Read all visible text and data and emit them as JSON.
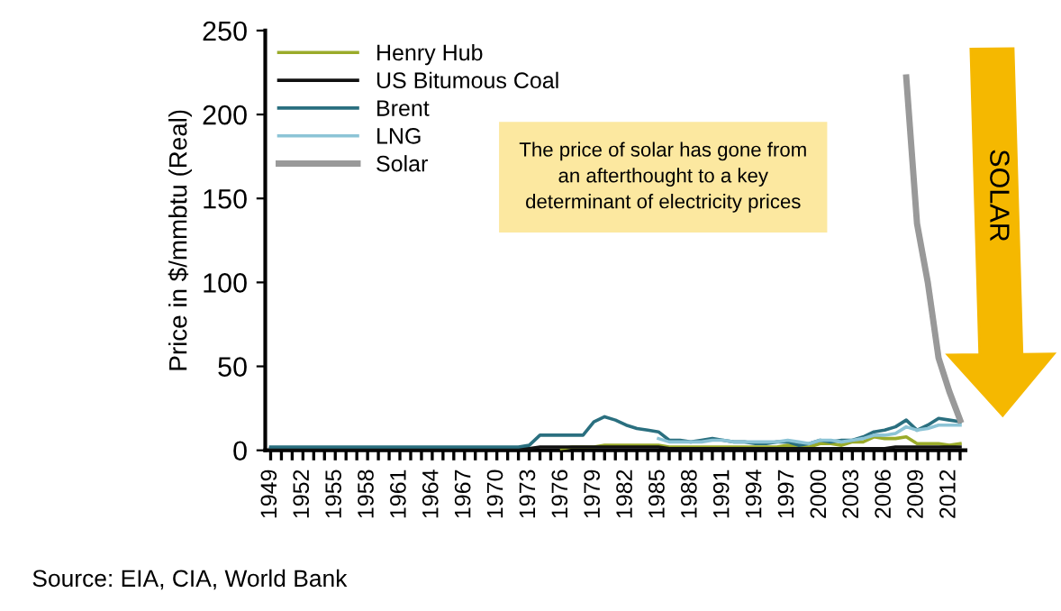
{
  "chart_data": {
    "type": "line",
    "ylabel": "Price in $/mmbtu (Real)",
    "categories": [
      "1949",
      null,
      null,
      "1952",
      null,
      null,
      "1955",
      null,
      null,
      "1958",
      null,
      null,
      "1961",
      null,
      null,
      "1964",
      null,
      null,
      "1967",
      null,
      null,
      "1970",
      null,
      null,
      "1973",
      null,
      null,
      "1976",
      null,
      null,
      "1979",
      null,
      null,
      "1982",
      null,
      null,
      "1985",
      null,
      null,
      "1988",
      null,
      null,
      "1991",
      null,
      null,
      "1994",
      null,
      null,
      "1997",
      null,
      null,
      "2000",
      null,
      null,
      "2003",
      null,
      null,
      "2006",
      null,
      null,
      "2009",
      null,
      null,
      "2012",
      null
    ],
    "series": [
      {
        "name": "Henry Hub",
        "color": "#9aab2a",
        "values": [
          null,
          null,
          null,
          null,
          null,
          null,
          null,
          null,
          null,
          null,
          null,
          null,
          null,
          null,
          null,
          null,
          null,
          null,
          null,
          null,
          null,
          null,
          null,
          null,
          null,
          null,
          null,
          1,
          2,
          2,
          2,
          3,
          3,
          3,
          3,
          3,
          3,
          2,
          2,
          2,
          2,
          2,
          2,
          2,
          2,
          2,
          2,
          2,
          3,
          2,
          2,
          4,
          4,
          3,
          5,
          5,
          8,
          7,
          7,
          8,
          4,
          4,
          4,
          3,
          4
        ]
      },
      {
        "name": "US Bitumous Coal",
        "color": "#111111",
        "values": [
          1,
          1,
          1,
          1,
          1,
          1,
          1,
          1,
          1,
          1,
          1,
          1,
          1,
          1,
          1,
          1,
          1,
          1,
          1,
          1,
          1,
          1,
          1,
          1,
          1,
          2,
          2,
          2,
          2,
          2,
          2,
          2,
          2,
          2,
          2,
          2,
          2,
          1,
          1,
          1,
          1,
          1,
          1,
          1,
          1,
          1,
          1,
          1,
          1,
          1,
          1,
          1,
          1,
          1,
          1,
          1,
          1,
          1,
          2,
          2,
          2,
          2,
          2,
          2,
          2
        ]
      },
      {
        "name": "Brent",
        "color": "#2a6f7f",
        "values": [
          2,
          2,
          2,
          2,
          2,
          2,
          2,
          2,
          2,
          2,
          2,
          2,
          2,
          2,
          2,
          2,
          2,
          2,
          2,
          2,
          2,
          2,
          2,
          2,
          3,
          9,
          9,
          9,
          9,
          9,
          17,
          20,
          18,
          15,
          13,
          12,
          11,
          6,
          6,
          5,
          6,
          7,
          6,
          5,
          5,
          4,
          4,
          5,
          5,
          3,
          4,
          6,
          5,
          6,
          6,
          8,
          11,
          12,
          14,
          18,
          12,
          15,
          19,
          18,
          17
        ]
      },
      {
        "name": "LNG",
        "color": "#8cc4d6",
        "values": [
          null,
          null,
          null,
          null,
          null,
          null,
          null,
          null,
          null,
          null,
          null,
          null,
          null,
          null,
          null,
          null,
          null,
          null,
          null,
          null,
          null,
          null,
          null,
          null,
          null,
          null,
          null,
          null,
          null,
          null,
          null,
          null,
          null,
          null,
          null,
          null,
          7,
          5,
          5,
          5,
          5,
          6,
          6,
          5,
          5,
          5,
          5,
          5,
          6,
          5,
          4,
          6,
          6,
          5,
          6,
          7,
          9,
          9,
          10,
          14,
          12,
          13,
          15,
          15,
          15
        ]
      },
      {
        "name": "Solar",
        "color": "#999999",
        "values": [
          null,
          null,
          null,
          null,
          null,
          null,
          null,
          null,
          null,
          null,
          null,
          null,
          null,
          null,
          null,
          null,
          null,
          null,
          null,
          null,
          null,
          null,
          null,
          null,
          null,
          null,
          null,
          null,
          null,
          null,
          null,
          null,
          null,
          null,
          null,
          null,
          null,
          null,
          null,
          null,
          null,
          null,
          null,
          null,
          null,
          null,
          null,
          null,
          null,
          null,
          null,
          null,
          null,
          null,
          null,
          null,
          null,
          null,
          null,
          222,
          135,
          100,
          55,
          35,
          18
        ]
      }
    ],
    "ylim": [
      0,
      250
    ],
    "yticks": [
      0,
      50,
      100,
      150,
      200,
      250
    ],
    "grid": false,
    "legend": "top left",
    "annotations": [
      "The price of solar has gone from\nan afterthought to a key\ndeterminant of electricity prices",
      "SOLAR",
      "Source: EIA, CIA, World Bank"
    ]
  }
}
